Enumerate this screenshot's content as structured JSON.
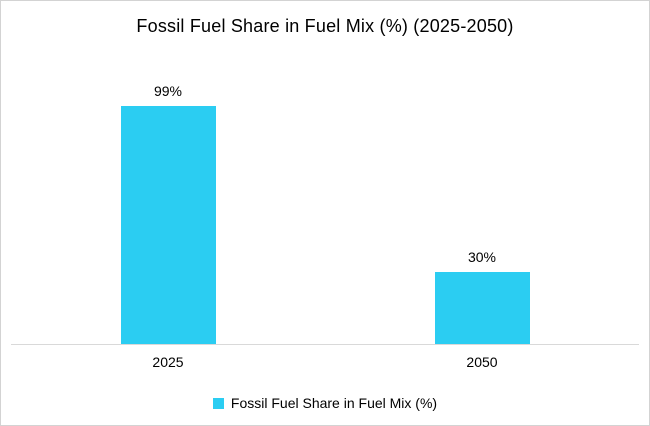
{
  "chart_data": {
    "type": "bar",
    "title": "Fossil Fuel Share in Fuel Mix (%) (2025-2050)",
    "categories": [
      "2025",
      "2050"
    ],
    "values": [
      99,
      30
    ],
    "data_labels": [
      "99%",
      "30%"
    ],
    "series": [
      {
        "name": "Fossil Fuel Share in Fuel Mix (%)",
        "values": [
          99,
          30
        ]
      }
    ],
    "legend": [
      "Fossil Fuel Share in Fuel Mix (%)"
    ],
    "legend_position": "bottom",
    "ylim": [
      0,
      100
    ],
    "grid": false,
    "y_axis_visible": false,
    "bar_color": "#2bcdf2",
    "axis_line_color": "#d9d9d9"
  }
}
